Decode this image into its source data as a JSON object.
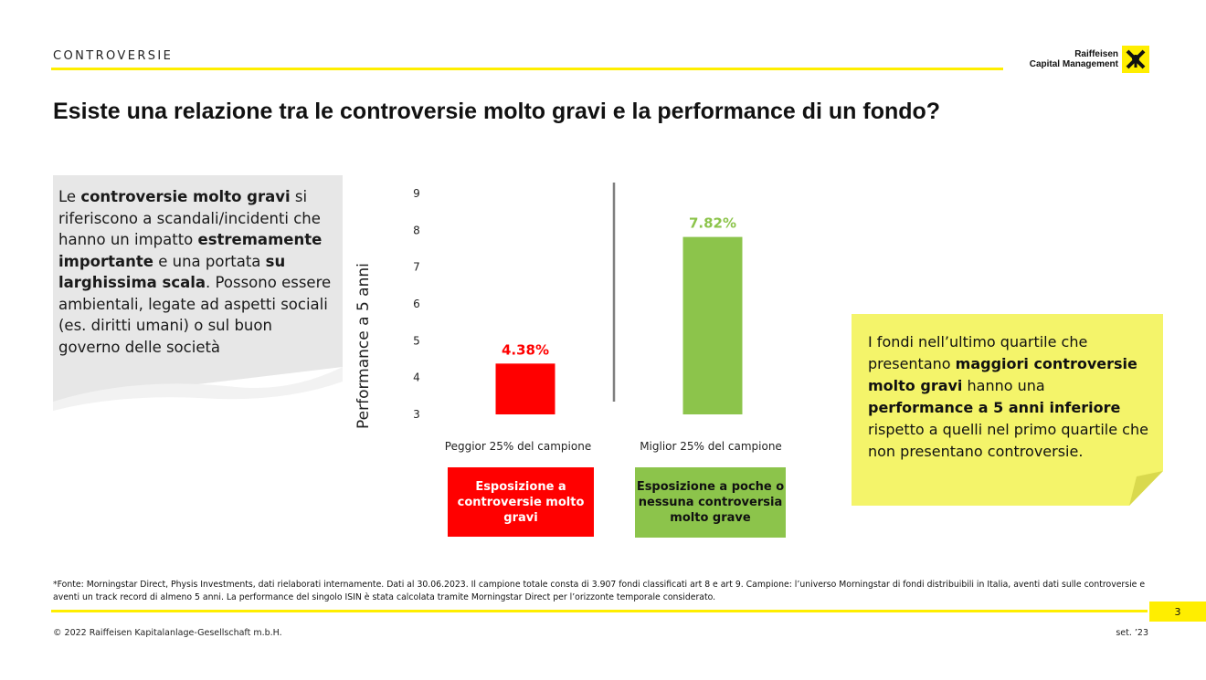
{
  "header": {
    "section": "CONTROVERSIE",
    "logo_line1": "Raiffeisen",
    "logo_line2": "Capital Management"
  },
  "title": "Esiste una relazione tra le controversie molto gravi e la performance di un fondo?",
  "left_note": {
    "t1": "Le ",
    "b1": "controversie molto gravi",
    "t2": " si riferiscono a scandali/incidenti che hanno un impatto ",
    "b2": "estremamente importante",
    "t3": " e una portata ",
    "b3": "su larghissima scala",
    "t4": ". Possono essere ambientali, legate ad aspetti sociali (es. diritti umani) o sul buon governo delle società"
  },
  "right_note": {
    "t1": "I fondi nell’ultimo quartile che presentano ",
    "b1": "maggiori controversie molto gravi",
    "t2": " hanno una ",
    "b2": "performance a 5 anni inferiore",
    "t3": " rispetto a quelli nel primo quartile che non presentano controversie."
  },
  "chart_data": {
    "type": "bar",
    "ylabel": "Performance a 5 anni",
    "ylim": [
      3,
      9
    ],
    "yticks": [
      "3",
      "4",
      "5",
      "6",
      "7",
      "8",
      "9"
    ],
    "categories": [
      "Peggior 25% del campione",
      "Miglior 25% del campione"
    ],
    "values": [
      4.38,
      7.82
    ],
    "value_labels": [
      "4.38%",
      "7.82%"
    ],
    "colors": [
      "#ff0000",
      "#8cc44b"
    ],
    "grid": false
  },
  "boxes": {
    "red": "Esposizione a controversie molto gravi",
    "green": "Esposizione a poche o nessuna controversia molto grave"
  },
  "footer": {
    "footnote": "*Fonte: Morningstar Direct, Physis Investments, dati rielaborati internamente. Dati al 30.06.2023. Il campione totale consta di 3.907 fondi classificati art 8 e art 9. Campione: l’universo Morningstar di fondi distribuibili in Italia, aventi dati sulle controversie e aventi un track record di almeno 5 anni. La performance del singolo ISIN è stata calcolata tramite Morningstar Direct per l’orizzonte temporale considerato.",
    "page": "3",
    "copyright": "© 2022 Raiffeisen Kapitalanlage-Gesellschaft m.b.H.",
    "date": "set. ’23"
  }
}
